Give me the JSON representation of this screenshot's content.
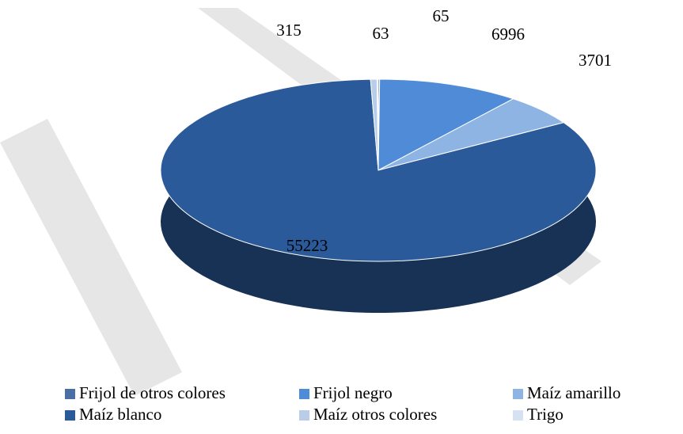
{
  "chart_data": {
    "type": "pie",
    "categories": [
      "Frijol de otros colores",
      "Frijol negro",
      "Maíz amarillo",
      "Maíz blanco",
      "Maíz otros colores",
      "Trigo"
    ],
    "values": [
      65,
      6996,
      3701,
      55223,
      315,
      63
    ],
    "colors": [
      "#4a6fa5",
      "#4f8bd6",
      "#8eb4e3",
      "#2b5a9a",
      "#b9cde8",
      "#d6e2f2"
    ],
    "legend": "bottom"
  }
}
